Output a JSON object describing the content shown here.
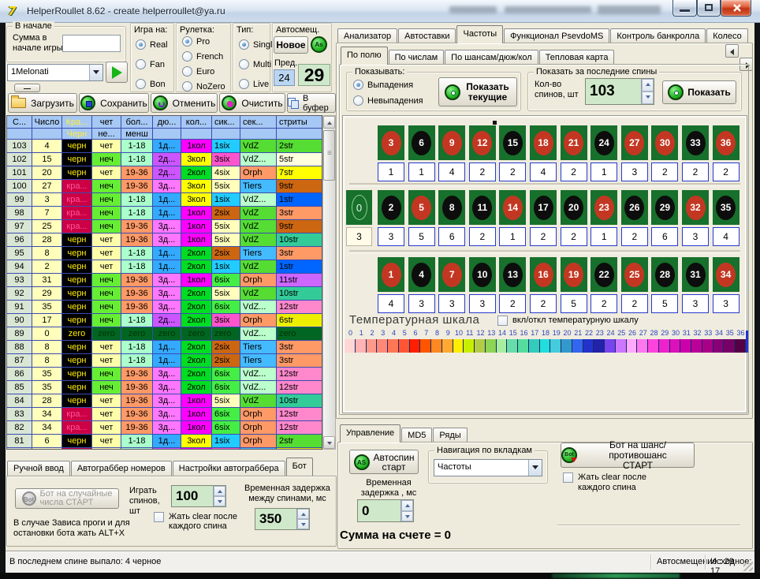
{
  "window": {
    "title": "HelperRoullet 8.62 - create helperroullet@ya.ru",
    "app_icon_glyph": "7"
  },
  "topbar": {
    "group_start": {
      "label": "В начале",
      "field_line1": "Сумма в",
      "field_line2": "начале игры",
      "value": ""
    },
    "preset_combo": {
      "value": "1Melonati"
    },
    "minus_button": "—",
    "game_on": {
      "label": "Игра на:",
      "options": [
        "Real",
        "Fan",
        "Bon"
      ],
      "selected": "Real"
    },
    "roulette": {
      "label": "Рулетка:",
      "options": [
        "Pro",
        "French",
        "Euro",
        "NoZero"
      ],
      "selected": "Pro"
    },
    "type": {
      "label": "Тип:",
      "options": [
        "Singl",
        "Multi",
        "Live"
      ],
      "selected": "Singl"
    },
    "autoshift": {
      "label": "Автосмещ.",
      "new_button": "Новое",
      "as_icon": "As",
      "prev_label": "Пред.",
      "prev_value": "24",
      "current_value": "29"
    }
  },
  "toolbar": {
    "load": "Загрузить",
    "save": "Сохранить",
    "undo": "Отменить",
    "clear": "Очистить",
    "buffer": "В буфер"
  },
  "left_table": {
    "headers": [
      "С...",
      "Число",
      "Кра...",
      "чет",
      "бол...",
      "дю...",
      "кол...",
      "сик...",
      "сек...",
      "стриты"
    ],
    "headers2": [
      "",
      "",
      "Черн",
      "не...",
      "менш",
      "",
      "",
      "",
      "",
      ""
    ],
    "rows": [
      [
        "103",
        "4",
        "черн",
        "чет",
        "1-18",
        "1д...",
        "1кол",
        "1six",
        "VdZ",
        "2str"
      ],
      [
        "102",
        "15",
        "черн",
        "неч",
        "1-18",
        "2д...",
        "3кол",
        "3six",
        "VdZ...",
        "5str"
      ],
      [
        "101",
        "20",
        "черн",
        "чет",
        "19-36",
        "2д...",
        "2кол",
        "4six",
        "Orph",
        "7str"
      ],
      [
        "100",
        "27",
        "кра...",
        "неч",
        "19-36",
        "3д...",
        "3кол",
        "5six",
        "Tiers",
        "9str"
      ],
      [
        "99",
        "3",
        "кра...",
        "неч",
        "1-18",
        "1д...",
        "3кол",
        "1six",
        "VdZ...",
        "1str"
      ],
      [
        "98",
        "7",
        "кра...",
        "неч",
        "1-18",
        "1д...",
        "1кол",
        "2six",
        "VdZ",
        "3str"
      ],
      [
        "97",
        "25",
        "кра...",
        "неч",
        "19-36",
        "3д...",
        "1кол",
        "5six",
        "VdZ",
        "9str"
      ],
      [
        "96",
        "28",
        "черн",
        "чет",
        "19-36",
        "3д...",
        "1кол",
        "5six",
        "VdZ",
        "10str"
      ],
      [
        "95",
        "8",
        "черн",
        "чет",
        "1-18",
        "1д...",
        "2кол",
        "2six",
        "Tiers",
        "3str"
      ],
      [
        "94",
        "2",
        "черн",
        "чет",
        "1-18",
        "1д...",
        "2кол",
        "1six",
        "VdZ",
        "1str"
      ],
      [
        "93",
        "31",
        "черн",
        "неч",
        "19-36",
        "3д...",
        "1кол",
        "6six",
        "Orph",
        "11str"
      ],
      [
        "92",
        "29",
        "черн",
        "неч",
        "19-36",
        "3д...",
        "2кол",
        "5six",
        "VdZ",
        "10str"
      ],
      [
        "91",
        "35",
        "черн",
        "неч",
        "19-36",
        "3д...",
        "2кол",
        "6six",
        "VdZ...",
        "12str"
      ],
      [
        "90",
        "17",
        "черн",
        "неч",
        "1-18",
        "2д...",
        "2кол",
        "3six",
        "Orph",
        "6str"
      ],
      [
        "89",
        "0",
        "zero",
        "zero",
        "zero",
        "zero",
        "zero",
        "zero",
        "VdZ...",
        "zero"
      ],
      [
        "88",
        "8",
        "черн",
        "чет",
        "1-18",
        "1д...",
        "2кол",
        "2six",
        "Tiers",
        "3str"
      ],
      [
        "87",
        "8",
        "черн",
        "чет",
        "1-18",
        "1д...",
        "2кол",
        "2six",
        "Tiers",
        "3str"
      ],
      [
        "86",
        "35",
        "черн",
        "неч",
        "19-36",
        "3д...",
        "2кол",
        "6six",
        "VdZ...",
        "12str"
      ],
      [
        "85",
        "35",
        "черн",
        "неч",
        "19-36",
        "3д...",
        "2кол",
        "6six",
        "VdZ...",
        "12str"
      ],
      [
        "84",
        "28",
        "черн",
        "чет",
        "19-36",
        "3д...",
        "1кол",
        "5six",
        "VdZ",
        "10str"
      ],
      [
        "83",
        "34",
        "кра...",
        "чет",
        "19-36",
        "3д...",
        "1кол",
        "6six",
        "Orph",
        "12str"
      ],
      [
        "82",
        "34",
        "кра...",
        "чет",
        "19-36",
        "3д...",
        "1кол",
        "6six",
        "Orph",
        "12str"
      ],
      [
        "81",
        "6",
        "черн",
        "чет",
        "1-18",
        "1д...",
        "3кол",
        "1six",
        "Orph",
        "2str"
      ],
      [
        "80",
        "16",
        "кра...",
        "чет",
        "1-18",
        "2д...",
        "1кол",
        "3six",
        "Tiers",
        "6str"
      ]
    ],
    "cell_colors": {
      "черн": [
        "#000000",
        "#ffee00"
      ],
      "кра...": [
        "#cc0044",
        "#ff5599"
      ],
      "чет": [
        "#ffffaa",
        "#000000"
      ],
      "неч": [
        "#66ee33",
        "#000000"
      ],
      "1-18": [
        "#aaffcc",
        "#000000"
      ],
      "19-36": [
        "#ff9966",
        "#000000"
      ],
      "1д...": [
        "#33aaff",
        "#000000"
      ],
      "2д...": [
        "#cc55ff",
        "#000000"
      ],
      "3д...": [
        "#ff77ff",
        "#000000"
      ],
      "1кол": [
        "#ff00ff",
        "#000000"
      ],
      "2кол": [
        "#00dd22",
        "#000000"
      ],
      "3кол": [
        "#ffff00",
        "#000000"
      ],
      "1six": [
        "#22ccff",
        "#000000"
      ],
      "2six": [
        "#cc6611",
        "#000000"
      ],
      "3six": [
        "#ff55cc",
        "#000000"
      ],
      "4six": [
        "#ffffbb",
        "#000000"
      ],
      "5six": [
        "#ffffbb",
        "#000000"
      ],
      "6six": [
        "#44ee44",
        "#000000"
      ],
      "VdZ": [
        "#55dd33",
        "#000000"
      ],
      "VdZ...": [
        "#bbffcc",
        "#000000"
      ],
      "Orph": [
        "#ff9966",
        "#000000"
      ],
      "Tiers": [
        "#44bbff",
        "#000000"
      ],
      "1str": [
        "#0066ff",
        "#000000"
      ],
      "2str": [
        "#55dd33",
        "#000000"
      ],
      "3str": [
        "#ff9966",
        "#000000"
      ],
      "5str": [
        "#ffffdd",
        "#000000"
      ],
      "6str": [
        "#eeee00",
        "#000000"
      ],
      "7str": [
        "#ffff00",
        "#000000"
      ],
      "9str": [
        "#cc6611",
        "#000000"
      ],
      "10str": [
        "#33cc99",
        "#000000"
      ],
      "11str": [
        "#cc66ff",
        "#000000"
      ],
      "12str": [
        "#ff88cc",
        "#000000"
      ],
      "zero": [
        "#006622",
        "#003300"
      ],
      "zero@kra": [
        "#000000",
        "#ffee00"
      ],
      "col0_bg": "#d9e6d3",
      "col1_bg": "#ffffbb",
      "header_bg": "#a6c8f4",
      "header_special_fg": "#ffee33"
    }
  },
  "bot_panel": {
    "tabs": [
      "Ручной ввод",
      "Автограббер номеров",
      "Настройки автограббера",
      "Бот"
    ],
    "active_tab": "Бот",
    "random_bot_button": "Бот на случайные числа СТАРТ",
    "spins_label": "Играть спинов, шт",
    "spins_value": "100",
    "delay_label": "Временная задержка между спинами, мс",
    "delay_value": "350",
    "clear_checkbox": "Жать clear после каждого спина",
    "hint": "В случае Зависа проги и для остановки бота жать ALT+X"
  },
  "right_panel": {
    "tabs": [
      "Анализатор",
      "Автоставки",
      "Частоты",
      "Функционал PsevdoMS",
      "Контроль банкролла",
      "Колесо"
    ],
    "active_tab": "Частоты",
    "subtabs": [
      "По полю",
      "По числам",
      "По шансам/дюж/кол",
      "Тепловая карта"
    ],
    "active_subtab": "По полю",
    "show_group": {
      "label": "Показывать:",
      "options": [
        "Выпадения",
        "Невыпадения"
      ],
      "selected": "Выпадения",
      "button": "Показать текущие"
    },
    "last_spins_group": {
      "label": "Показать за последние спины",
      "count_label": "Кол-во спинов, шт",
      "count_value": "103",
      "button": "Показать"
    },
    "board": {
      "zero": {
        "number": "0",
        "count": "3"
      },
      "rows": [
        {
          "numbers": [
            "3",
            "6",
            "9",
            "12",
            "15",
            "18",
            "21",
            "24",
            "27",
            "30",
            "33",
            "36"
          ],
          "colors": [
            "red",
            "black",
            "red",
            "red",
            "black",
            "red",
            "red",
            "black",
            "red",
            "red",
            "black",
            "red"
          ],
          "counts": [
            "1",
            "1",
            "4",
            "2",
            "2",
            "4",
            "2",
            "1",
            "3",
            "2",
            "2",
            "2"
          ]
        },
        {
          "numbers": [
            "2",
            "5",
            "8",
            "11",
            "14",
            "17",
            "20",
            "23",
            "26",
            "29",
            "32",
            "35"
          ],
          "colors": [
            "black",
            "red",
            "black",
            "black",
            "red",
            "black",
            "black",
            "red",
            "black",
            "black",
            "red",
            "black"
          ],
          "counts": [
            "3",
            "5",
            "6",
            "2",
            "1",
            "2",
            "2",
            "1",
            "2",
            "6",
            "3",
            "4"
          ]
        },
        {
          "numbers": [
            "1",
            "4",
            "7",
            "10",
            "13",
            "16",
            "19",
            "22",
            "25",
            "28",
            "31",
            "34"
          ],
          "colors": [
            "red",
            "black",
            "red",
            "black",
            "black",
            "red",
            "red",
            "black",
            "red",
            "black",
            "black",
            "red"
          ],
          "counts": [
            "4",
            "3",
            "3",
            "3",
            "2",
            "2",
            "5",
            "2",
            "2",
            "5",
            "3",
            "3"
          ]
        }
      ]
    },
    "temp_scale": {
      "title": "Температурная шкала",
      "checkbox_label": "вкл/откл температурную шкалу",
      "ticks": [
        "0",
        "1",
        "2",
        "3",
        "4",
        "5",
        "6",
        "7",
        "8",
        "9",
        "10",
        "11",
        "12",
        "13",
        "14",
        "15",
        "16",
        "17",
        "18",
        "19",
        "20",
        "21",
        "22",
        "23",
        "24",
        "25",
        "26",
        "27",
        "28",
        "29",
        "30",
        "31",
        "32",
        "33",
        "34",
        "35",
        "36"
      ],
      "colors": [
        "#ffd6d6",
        "#ffb3b3",
        "#ff9a8a",
        "#ff8877",
        "#ff7755",
        "#ff5533",
        "#ff1f00",
        "#ff5500",
        "#ff8822",
        "#ffa932",
        "#ffee00",
        "#c8ee00",
        "#b4cc44",
        "#8ed455",
        "#a8eea0",
        "#66ddaa",
        "#55dda0",
        "#33ccbb",
        "#22dddd",
        "#44ccdd",
        "#3399cc",
        "#3366ee",
        "#2233cc",
        "#2222aa",
        "#7744ee",
        "#cc77ff",
        "#ffaaff",
        "#ff77ee",
        "#ff44dd",
        "#ee22cc",
        "#dd11bb",
        "#cc00aa",
        "#bb0099",
        "#aa0088",
        "#880077",
        "#770066",
        "#550044"
      ]
    },
    "control_panel": {
      "tabs": [
        "Управление",
        "MD5",
        "Ряды"
      ],
      "active_tab": "Управление",
      "autospin_button": "Автоспин старт",
      "delay_label": "Временная задержка , мс",
      "delay_value": "0",
      "nav_group": "Навигация по вкладкам",
      "nav_value": "Частоты",
      "chance_bot_line1": "Бот на шанс/противошанс",
      "chance_bot_line2": "СТАРТ",
      "clear_checkbox": "Жать clear после каждого спина",
      "balance_text": "Сумма на счете = 0"
    }
  },
  "status_bar": {
    "left": "В последнем спине выпало: 4 черное",
    "autoshift": "Автосмещение : 29",
    "initial": "Исходное: 17"
  }
}
